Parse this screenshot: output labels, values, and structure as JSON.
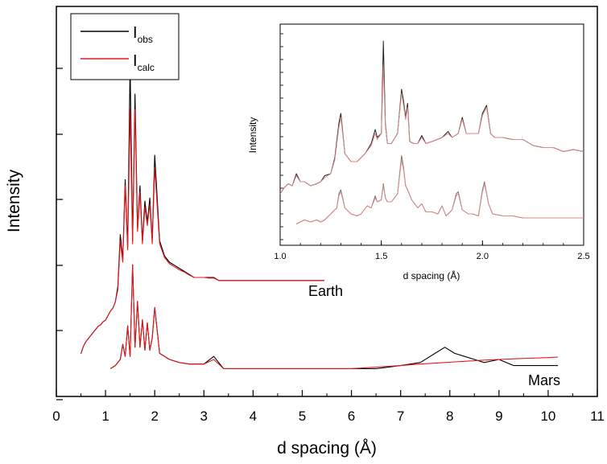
{
  "chart_data": [
    {
      "type": "line",
      "title": "",
      "xlabel": "d spacing (Å)",
      "ylabel": "Intensity",
      "xlim": [
        0,
        11
      ],
      "xticks": [
        "0",
        "1",
        "2",
        "3",
        "4",
        "5",
        "6",
        "7",
        "8",
        "9",
        "10",
        "11"
      ],
      "ytick_labels_shown": false,
      "legend": {
        "placement": "top-left",
        "entries": [
          {
            "main": "I",
            "sub": "obs",
            "color": "#000000"
          },
          {
            "main": "I",
            "sub": "calc",
            "color": "#e8161b"
          }
        ]
      },
      "annotations": [
        {
          "text": "Earth",
          "x": 5.1,
          "y": 0.188
        },
        {
          "text": "Mars",
          "x": 9.6,
          "y": 0.01
        }
      ],
      "series": [
        {
          "curve": "Earth",
          "role": "obs",
          "color": "#000000",
          "x": [
            0.5,
            0.55,
            0.6,
            0.65,
            0.7,
            0.75,
            0.8,
            0.85,
            0.9,
            0.95,
            1.0,
            1.05,
            1.1,
            1.15,
            1.2,
            1.25,
            1.3,
            1.35,
            1.4,
            1.45,
            1.5,
            1.55,
            1.6,
            1.65,
            1.7,
            1.75,
            1.8,
            1.85,
            1.9,
            1.95,
            2.0,
            2.1,
            2.2,
            2.3,
            2.4,
            2.5,
            2.6,
            2.7,
            2.8,
            2.9,
            3.0,
            3.1,
            3.2,
            3.3,
            3.5,
            3.7,
            4.0,
            4.3,
            4.6,
            5.0,
            5.45
          ],
          "y": [
            0.05,
            0.075,
            0.09,
            0.1,
            0.11,
            0.12,
            0.13,
            0.14,
            0.145,
            0.155,
            0.16,
            0.175,
            0.19,
            0.2,
            0.22,
            0.27,
            0.44,
            0.36,
            0.62,
            0.4,
            1.0,
            0.42,
            0.9,
            0.46,
            0.6,
            0.42,
            0.55,
            0.48,
            0.56,
            0.42,
            0.7,
            0.42,
            0.37,
            0.35,
            0.34,
            0.33,
            0.32,
            0.31,
            0.3,
            0.3,
            0.3,
            0.3,
            0.3,
            0.29,
            0.29,
            0.29,
            0.29,
            0.29,
            0.29,
            0.29,
            0.29
          ]
        },
        {
          "curve": "Earth",
          "role": "calc",
          "color": "#e8161b",
          "x": [
            0.5,
            0.55,
            0.6,
            0.65,
            0.7,
            0.75,
            0.8,
            0.85,
            0.9,
            0.95,
            1.0,
            1.05,
            1.1,
            1.15,
            1.2,
            1.25,
            1.3,
            1.35,
            1.4,
            1.45,
            1.5,
            1.55,
            1.6,
            1.65,
            1.7,
            1.75,
            1.8,
            1.85,
            1.9,
            1.95,
            2.0,
            2.1,
            2.2,
            2.3,
            2.4,
            2.5,
            2.6,
            2.7,
            2.8,
            2.9,
            3.0,
            3.1,
            3.2,
            3.3,
            3.5,
            3.7,
            4.0,
            4.3,
            4.6,
            5.0,
            5.45
          ],
          "y": [
            0.05,
            0.074,
            0.09,
            0.1,
            0.11,
            0.12,
            0.13,
            0.14,
            0.145,
            0.155,
            0.16,
            0.175,
            0.19,
            0.2,
            0.22,
            0.26,
            0.42,
            0.35,
            0.6,
            0.39,
            0.85,
            0.41,
            0.85,
            0.45,
            0.58,
            0.41,
            0.53,
            0.47,
            0.54,
            0.41,
            0.66,
            0.41,
            0.365,
            0.345,
            0.335,
            0.325,
            0.318,
            0.308,
            0.3,
            0.3,
            0.3,
            0.298,
            0.298,
            0.29,
            0.29,
            0.29,
            0.29,
            0.29,
            0.29,
            0.29,
            0.29
          ]
        },
        {
          "curve": "Mars",
          "role": "obs",
          "color": "#000000",
          "x": [
            1.1,
            1.2,
            1.3,
            1.35,
            1.4,
            1.45,
            1.5,
            1.55,
            1.6,
            1.65,
            1.7,
            1.75,
            1.8,
            1.85,
            1.9,
            1.95,
            2.0,
            2.1,
            2.3,
            2.5,
            2.7,
            3.0,
            3.2,
            3.4,
            3.7,
            4.0,
            4.5,
            5.0,
            5.5,
            6.0,
            6.5,
            7.0,
            7.4,
            7.7,
            7.9,
            8.1,
            8.3,
            8.5,
            8.7,
            9.0,
            9.3,
            9.6,
            10.0,
            10.2
          ],
          "y": [
            0.02,
            0.03,
            0.05,
            0.1,
            0.06,
            0.16,
            0.06,
            0.36,
            0.09,
            0.24,
            0.09,
            0.18,
            0.08,
            0.17,
            0.08,
            0.12,
            0.22,
            0.07,
            0.05,
            0.04,
            0.035,
            0.035,
            0.06,
            0.02,
            0.02,
            0.02,
            0.02,
            0.02,
            0.02,
            0.02,
            0.02,
            0.03,
            0.04,
            0.07,
            0.09,
            0.07,
            0.06,
            0.05,
            0.04,
            0.05,
            0.03,
            0.03,
            0.03,
            0.03
          ]
        },
        {
          "curve": "Mars",
          "role": "calc",
          "color": "#e8161b",
          "x": [
            1.1,
            1.2,
            1.3,
            1.35,
            1.4,
            1.45,
            1.5,
            1.55,
            1.6,
            1.65,
            1.7,
            1.75,
            1.8,
            1.85,
            1.9,
            1.95,
            2.0,
            2.1,
            2.3,
            2.5,
            2.7,
            3.0,
            3.2,
            3.4,
            3.7,
            4.0,
            4.5,
            5.0,
            5.5,
            6.0,
            6.5,
            7.0,
            7.4,
            7.7,
            7.9,
            8.1,
            8.3,
            8.5,
            8.7,
            9.0,
            9.3,
            9.6,
            10.0,
            10.2
          ],
          "y": [
            0.02,
            0.03,
            0.05,
            0.1,
            0.06,
            0.16,
            0.06,
            0.36,
            0.09,
            0.24,
            0.09,
            0.18,
            0.08,
            0.17,
            0.08,
            0.12,
            0.22,
            0.07,
            0.05,
            0.04,
            0.035,
            0.035,
            0.05,
            0.02,
            0.02,
            0.02,
            0.02,
            0.02,
            0.02,
            0.02,
            0.025,
            0.03,
            0.035,
            0.038,
            0.04,
            0.042,
            0.044,
            0.046,
            0.048,
            0.05,
            0.052,
            0.054,
            0.056,
            0.058
          ]
        }
      ]
    },
    {
      "type": "line",
      "title": "",
      "xlabel": "d spacing (Å)",
      "ylabel": "Intensity",
      "xlim": [
        1.0,
        2.5
      ],
      "xticks": [
        "1.0",
        "1.5",
        "2.0",
        "2.5"
      ],
      "ytick_labels_shown": false,
      "series": [
        {
          "curve": "Earth",
          "role": "obs",
          "color": "#222222",
          "x": [
            1.0,
            1.02,
            1.04,
            1.06,
            1.08,
            1.1,
            1.12,
            1.15,
            1.18,
            1.2,
            1.22,
            1.25,
            1.27,
            1.29,
            1.3,
            1.32,
            1.35,
            1.38,
            1.4,
            1.42,
            1.45,
            1.47,
            1.48,
            1.5,
            1.51,
            1.52,
            1.53,
            1.55,
            1.58,
            1.6,
            1.61,
            1.62,
            1.63,
            1.64,
            1.66,
            1.68,
            1.7,
            1.72,
            1.75,
            1.8,
            1.83,
            1.85,
            1.88,
            1.9,
            1.92,
            1.95,
            1.98,
            2.0,
            2.02,
            2.04,
            2.06,
            2.1,
            2.15,
            2.2,
            2.25,
            2.3,
            2.35,
            2.4,
            2.45,
            2.5
          ],
          "y": [
            0.2,
            0.23,
            0.25,
            0.24,
            0.3,
            0.26,
            0.26,
            0.24,
            0.25,
            0.26,
            0.29,
            0.3,
            0.38,
            0.55,
            0.6,
            0.4,
            0.36,
            0.36,
            0.38,
            0.4,
            0.45,
            0.52,
            0.48,
            0.5,
            0.96,
            0.55,
            0.45,
            0.45,
            0.5,
            0.72,
            0.66,
            0.58,
            0.65,
            0.46,
            0.45,
            0.45,
            0.49,
            0.45,
            0.46,
            0.48,
            0.51,
            0.48,
            0.5,
            0.58,
            0.5,
            0.5,
            0.5,
            0.6,
            0.64,
            0.5,
            0.48,
            0.48,
            0.47,
            0.47,
            0.44,
            0.43,
            0.43,
            0.41,
            0.42,
            0.41
          ]
        },
        {
          "curve": "Earth",
          "role": "calc",
          "color": "#d98a8a",
          "x": [
            1.0,
            1.02,
            1.04,
            1.06,
            1.08,
            1.1,
            1.12,
            1.15,
            1.18,
            1.2,
            1.22,
            1.25,
            1.27,
            1.29,
            1.3,
            1.32,
            1.35,
            1.38,
            1.4,
            1.42,
            1.45,
            1.47,
            1.48,
            1.5,
            1.51,
            1.52,
            1.53,
            1.55,
            1.58,
            1.6,
            1.61,
            1.62,
            1.63,
            1.64,
            1.66,
            1.68,
            1.7,
            1.72,
            1.75,
            1.8,
            1.83,
            1.85,
            1.88,
            1.9,
            1.92,
            1.95,
            1.98,
            2.0,
            2.02,
            2.04,
            2.06,
            2.1,
            2.15,
            2.2,
            2.25,
            2.3,
            2.35,
            2.4,
            2.45,
            2.5
          ],
          "y": [
            0.2,
            0.23,
            0.25,
            0.24,
            0.29,
            0.26,
            0.26,
            0.24,
            0.25,
            0.26,
            0.28,
            0.3,
            0.37,
            0.53,
            0.58,
            0.4,
            0.36,
            0.36,
            0.38,
            0.4,
            0.44,
            0.5,
            0.47,
            0.5,
            0.84,
            0.54,
            0.45,
            0.45,
            0.5,
            0.7,
            0.64,
            0.57,
            0.63,
            0.46,
            0.45,
            0.45,
            0.48,
            0.45,
            0.46,
            0.48,
            0.5,
            0.48,
            0.5,
            0.57,
            0.5,
            0.5,
            0.5,
            0.59,
            0.63,
            0.5,
            0.48,
            0.48,
            0.47,
            0.47,
            0.44,
            0.43,
            0.43,
            0.41,
            0.42,
            0.41
          ]
        },
        {
          "curve": "Mars",
          "role": "obs",
          "color": "#777777",
          "x": [
            1.08,
            1.1,
            1.12,
            1.15,
            1.18,
            1.2,
            1.22,
            1.25,
            1.28,
            1.29,
            1.3,
            1.32,
            1.35,
            1.38,
            1.4,
            1.43,
            1.45,
            1.47,
            1.48,
            1.5,
            1.51,
            1.52,
            1.53,
            1.55,
            1.58,
            1.6,
            1.61,
            1.62,
            1.63,
            1.65,
            1.68,
            1.7,
            1.72,
            1.75,
            1.78,
            1.8,
            1.82,
            1.85,
            1.87,
            1.88,
            1.9,
            1.93,
            1.95,
            1.98,
            2.0,
            2.01,
            2.03,
            2.05,
            2.1,
            2.15,
            2.2,
            2.25,
            2.3,
            2.35,
            2.4,
            2.45,
            2.5
          ],
          "y": [
            0.05,
            0.06,
            0.07,
            0.06,
            0.07,
            0.06,
            0.07,
            0.1,
            0.13,
            0.2,
            0.22,
            0.13,
            0.1,
            0.09,
            0.1,
            0.14,
            0.13,
            0.19,
            0.16,
            0.17,
            0.25,
            0.18,
            0.16,
            0.16,
            0.2,
            0.39,
            0.33,
            0.24,
            0.22,
            0.17,
            0.13,
            0.15,
            0.11,
            0.11,
            0.1,
            0.14,
            0.09,
            0.12,
            0.2,
            0.21,
            0.12,
            0.1,
            0.1,
            0.09,
            0.22,
            0.26,
            0.15,
            0.1,
            0.09,
            0.09,
            0.08,
            0.08,
            0.08,
            0.08,
            0.08,
            0.08,
            0.08
          ]
        },
        {
          "curve": "Mars",
          "role": "calc",
          "color": "#d98a8a",
          "x": [
            1.08,
            1.1,
            1.12,
            1.15,
            1.18,
            1.2,
            1.22,
            1.25,
            1.28,
            1.29,
            1.3,
            1.32,
            1.35,
            1.38,
            1.4,
            1.43,
            1.45,
            1.47,
            1.48,
            1.5,
            1.51,
            1.52,
            1.53,
            1.55,
            1.58,
            1.6,
            1.61,
            1.62,
            1.63,
            1.65,
            1.68,
            1.7,
            1.72,
            1.75,
            1.78,
            1.8,
            1.82,
            1.85,
            1.87,
            1.88,
            1.9,
            1.93,
            1.95,
            1.98,
            2.0,
            2.01,
            2.03,
            2.05,
            2.1,
            2.15,
            2.2,
            2.25,
            2.3,
            2.35,
            2.4,
            2.45,
            2.5
          ],
          "y": [
            0.05,
            0.06,
            0.07,
            0.06,
            0.07,
            0.06,
            0.07,
            0.1,
            0.13,
            0.19,
            0.21,
            0.13,
            0.1,
            0.09,
            0.1,
            0.14,
            0.13,
            0.18,
            0.16,
            0.17,
            0.24,
            0.18,
            0.16,
            0.16,
            0.2,
            0.37,
            0.32,
            0.24,
            0.22,
            0.17,
            0.13,
            0.15,
            0.11,
            0.11,
            0.1,
            0.14,
            0.09,
            0.12,
            0.19,
            0.2,
            0.12,
            0.1,
            0.1,
            0.09,
            0.21,
            0.25,
            0.15,
            0.1,
            0.09,
            0.09,
            0.08,
            0.08,
            0.08,
            0.08,
            0.08,
            0.08,
            0.08
          ]
        }
      ]
    }
  ]
}
